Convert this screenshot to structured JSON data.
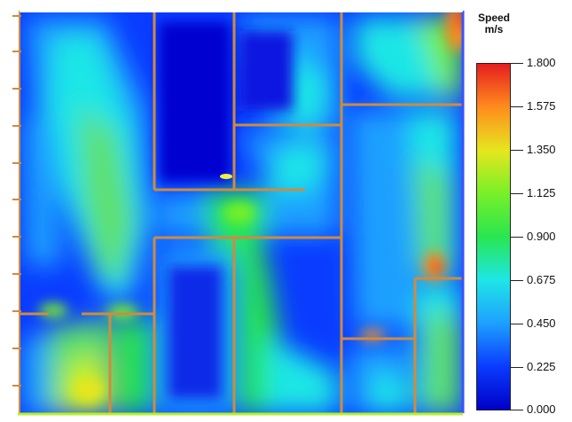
{
  "legend": {
    "title_line1": "Speed",
    "title_line2": "m/s",
    "ticks": [
      "1.800",
      "1.575",
      "1.350",
      "1.125",
      "0.900",
      "0.675",
      "0.450",
      "0.225",
      "0.000"
    ],
    "min": 0.0,
    "max": 1.8,
    "colors": [
      "#0000c8",
      "#0a3cff",
      "#1ea0ff",
      "#1ee6e6",
      "#28e650",
      "#78f028",
      "#e6e61e",
      "#ff8c1e",
      "#e61e1e"
    ]
  },
  "colormap": "blue-cyan-green-yellow-red",
  "wall_color": "#d08a40"
}
